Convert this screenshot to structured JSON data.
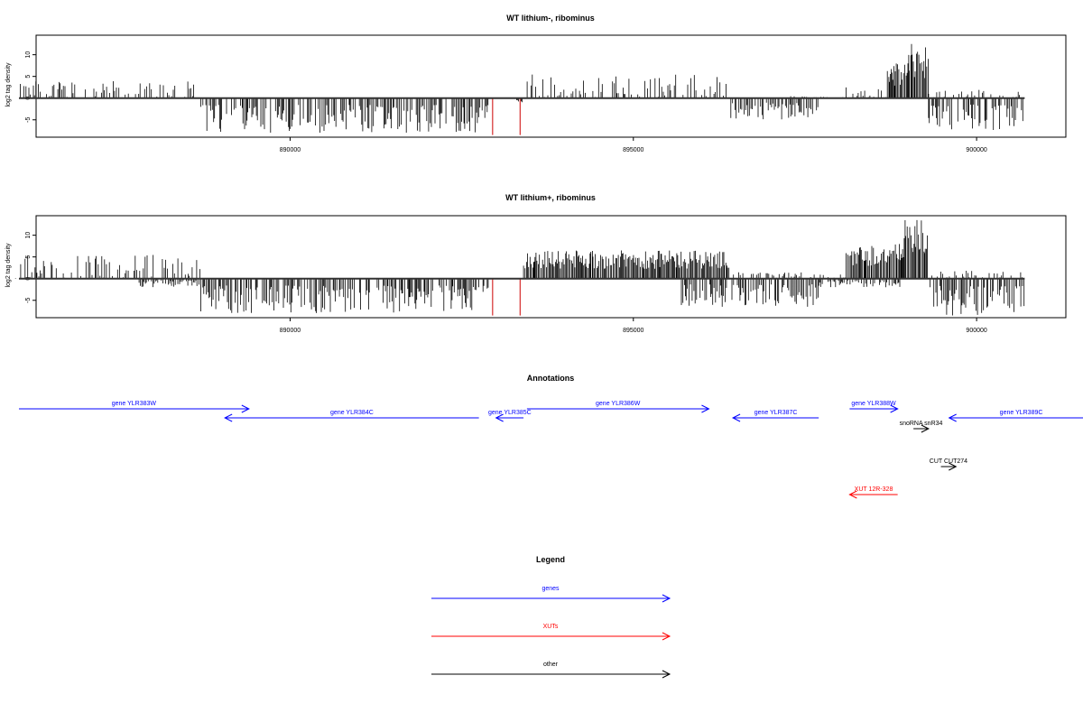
{
  "colors": {
    "genes": "#0000ff",
    "xuts": "#ff0000",
    "other": "#000000",
    "box": "#000000"
  },
  "chart_data": [
    {
      "type": "bar",
      "title": "WT lithium-, ribominus",
      "xlabel": "",
      "ylabel": "log2 tag density",
      "xlim": [
        886300,
        901300
      ],
      "ylim": [
        -9,
        14.5
      ],
      "yticks": [
        -5,
        0,
        5,
        10
      ],
      "xticks": [
        890000,
        895000,
        900000
      ],
      "grid": false,
      "pos_segments": [
        {
          "x0": 886000,
          "x1": 888700,
          "max": 4
        },
        {
          "x0": 893400,
          "x1": 896400,
          "max": 5.5
        },
        {
          "x0": 897200,
          "x1": 898100,
          "max": 0.5
        },
        {
          "x0": 898100,
          "x1": 898700,
          "max": 4
        },
        {
          "x0": 898700,
          "x1": 899000,
          "max": 8
        },
        {
          "x0": 899000,
          "x1": 899300,
          "max": 13
        },
        {
          "x0": 899300,
          "x1": 900700,
          "max": 2
        }
      ],
      "neg_segments": [
        {
          "x0": 888700,
          "x1": 892900,
          "min": -8
        },
        {
          "x0": 893300,
          "x1": 893400,
          "min": -1
        },
        {
          "x0": 896400,
          "x1": 897700,
          "min": -5
        },
        {
          "x0": 899300,
          "x1": 900700,
          "min": -7.5
        }
      ],
      "red_lines": [
        {
          "x": 892950,
          "y": -8.5
        },
        {
          "x": 893350,
          "y": -8.5
        }
      ]
    },
    {
      "type": "bar",
      "title": "WT lithium+, ribominus",
      "xlabel": "",
      "ylabel": "log2 tag density",
      "xlim": [
        886300,
        901300
      ],
      "ylim": [
        -9,
        14.5
      ],
      "yticks": [
        -5,
        0,
        5,
        10
      ],
      "xticks": [
        890000,
        895000,
        900000
      ],
      "grid": false,
      "pos_segments": [
        {
          "x0": 886000,
          "x1": 888700,
          "max": 5.5
        },
        {
          "x0": 893400,
          "x1": 896400,
          "max": 6.5
        },
        {
          "x0": 896400,
          "x1": 897700,
          "max": 1.5
        },
        {
          "x0": 897700,
          "x1": 898100,
          "max": 1
        },
        {
          "x0": 898100,
          "x1": 898900,
          "max": 8
        },
        {
          "x0": 898900,
          "x1": 899300,
          "max": 13.5
        },
        {
          "x0": 899300,
          "x1": 900700,
          "max": 2
        }
      ],
      "neg_segments": [
        {
          "x0": 887800,
          "x1": 888700,
          "min": -2
        },
        {
          "x0": 888700,
          "x1": 892900,
          "min": -8
        },
        {
          "x0": 895700,
          "x1": 897700,
          "min": -6.5
        },
        {
          "x0": 897700,
          "x1": 898900,
          "min": -2
        },
        {
          "x0": 899300,
          "x1": 900700,
          "min": -8.5
        }
      ],
      "red_lines": [
        {
          "x": 892950,
          "y": -8.5
        },
        {
          "x": 893350,
          "y": -8.5
        }
      ]
    }
  ],
  "annotations": {
    "title": "Annotations",
    "items": [
      {
        "label": "gene YLR383W",
        "kind": "genes",
        "from": 886050,
        "to": 889400,
        "row": 0
      },
      {
        "label": "gene YLR384C",
        "kind": "genes",
        "from": 892750,
        "to": 889050,
        "row": 1
      },
      {
        "label": "gene YLR385C",
        "kind": "genes",
        "from": 893400,
        "to": 893000,
        "row": 1
      },
      {
        "label": "gene YLR386W",
        "kind": "genes",
        "from": 893450,
        "to": 896100,
        "row": 0
      },
      {
        "label": "gene YLR387C",
        "kind": "genes",
        "from": 897700,
        "to": 896450,
        "row": 1
      },
      {
        "label": "gene YLR388W",
        "kind": "genes",
        "from": 898150,
        "to": 898850,
        "row": 0
      },
      {
        "label": "gene YLR389C",
        "kind": "genes",
        "from": 901700,
        "to": 899600,
        "row": 1
      },
      {
        "label": "snoRNA snR34",
        "kind": "other",
        "from": 899080,
        "to": 899300,
        "row": 2
      },
      {
        "label": "CUT CUT274",
        "kind": "other",
        "from": 899480,
        "to": 899700,
        "row": 3
      },
      {
        "label": "XUT 12R-328",
        "kind": "xuts",
        "from": 898850,
        "to": 898150,
        "row": 4
      }
    ]
  },
  "legend": {
    "title": "Legend",
    "items": [
      {
        "label": "genes",
        "kind": "genes"
      },
      {
        "label": "XUTs",
        "kind": "xuts"
      },
      {
        "label": "other",
        "kind": "other"
      }
    ]
  }
}
